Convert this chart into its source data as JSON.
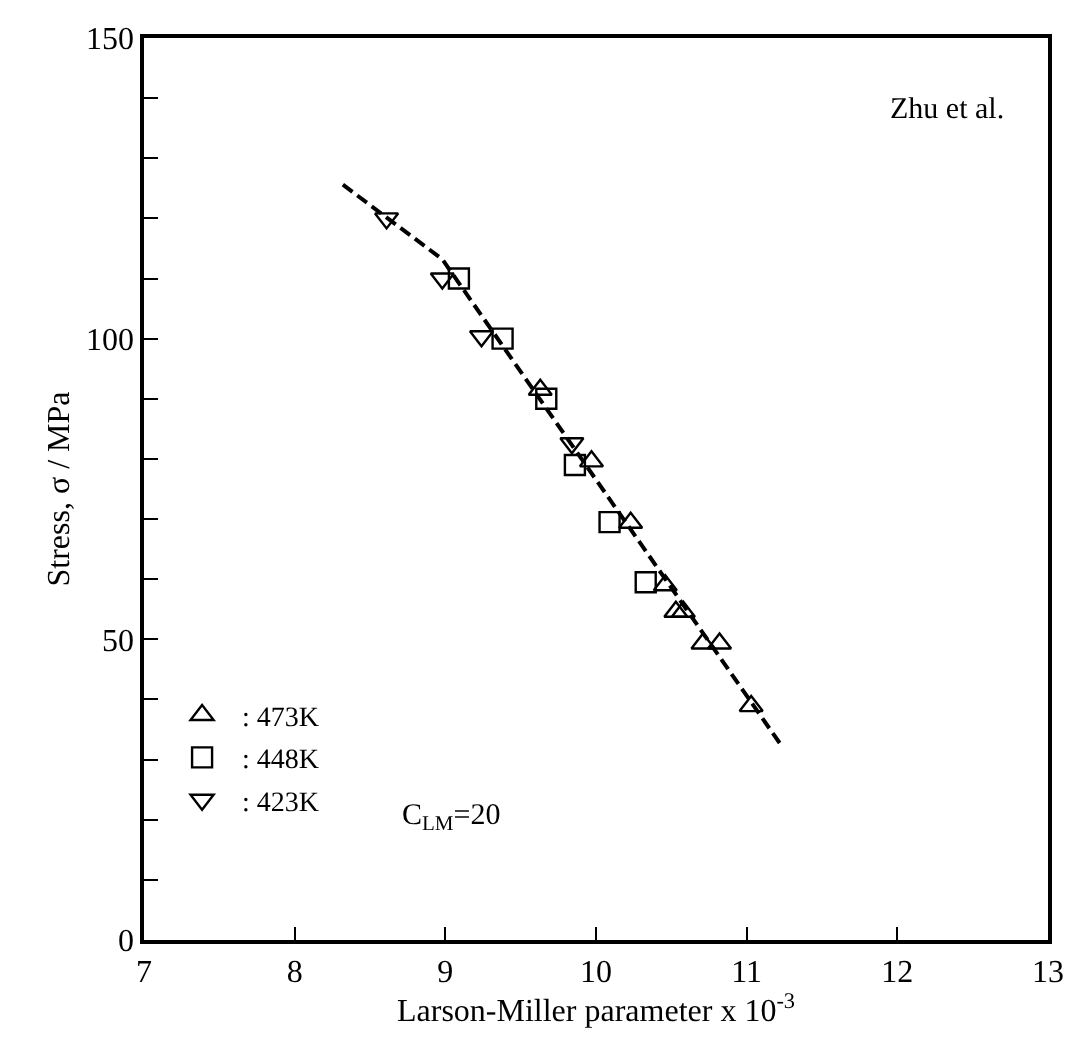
{
  "chart_data": {
    "type": "scatter",
    "xlabel": "Larson-Miller parameter x 10$^{-3}$",
    "ylabel": "Stress, σ / MPa",
    "xlim": [
      7,
      13
    ],
    "xticks": [
      7,
      8,
      9,
      10,
      11,
      12,
      13
    ],
    "ylim": [
      0,
      150
    ],
    "yticks": [
      0,
      {
        "value": 10,
        "label": null
      },
      {
        "value": 20,
        "label": null
      },
      {
        "value": 30,
        "label": null
      },
      {
        "value": 40,
        "label": null
      },
      50,
      {
        "value": 60,
        "label": null
      },
      {
        "value": 70,
        "label": null
      },
      {
        "value": 80,
        "label": null
      },
      {
        "value": 90,
        "label": null
      },
      100,
      {
        "value": 110,
        "label": null
      },
      {
        "value": 120,
        "label": null
      },
      {
        "value": 130,
        "label": null
      },
      {
        "value": 140,
        "label": null
      },
      150
    ],
    "legend": "bottom left",
    "series": [
      {
        "name": ": 473K",
        "color": "#000000",
        "marker": "triangle",
        "x": [
          9.63,
          9.97,
          10.23,
          10.46,
          10.53,
          10.58,
          10.71,
          10.82,
          11.03
        ],
        "values": [
          91.5,
          79.6,
          69.4,
          59,
          54.6,
          54.6,
          49.3,
          49.3,
          38.9
        ]
      },
      {
        "name": ": 448K",
        "color": "#000000",
        "marker": "square",
        "x": [
          9.09,
          9.38,
          9.67,
          9.86,
          10.09,
          10.33
        ],
        "values": [
          110,
          100,
          90,
          79,
          69.5,
          59.5
        ]
      },
      {
        "name": ": 423K",
        "color": "#000000",
        "marker": "triangle-down",
        "x": [
          8.61,
          8.98,
          9.24,
          9.84
        ],
        "values": [
          120,
          110,
          100.4,
          82.6
        ]
      },
      {
        "type": "line",
        "color": "#000000",
        "line_style": "dashed",
        "marker": "none",
        "x": [
          8.32,
          8.98,
          11.24
        ],
        "values": [
          125.6,
          113.2,
          32
        ]
      }
    ],
    "annotations": [
      "Zhu et al.",
      "C$_{LM}$=20"
    ]
  }
}
